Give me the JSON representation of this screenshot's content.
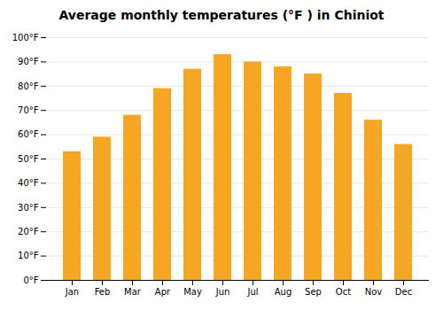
{
  "chart_data": {
    "type": "bar",
    "title": "Average monthly temperatures (°F ) in Chiniot",
    "categories": [
      "Jan",
      "Feb",
      "Mar",
      "Apr",
      "May",
      "Jun",
      "Jul",
      "Aug",
      "Sep",
      "Oct",
      "Nov",
      "Dec"
    ],
    "values": [
      53,
      59,
      68,
      79,
      87,
      93,
      90,
      88,
      85,
      77,
      66,
      56
    ],
    "color": "#F5A623",
    "ylim": [
      0,
      100
    ],
    "yticks": [
      {
        "value": 0,
        "label": "0°F"
      },
      {
        "value": 10,
        "label": "10°F"
      },
      {
        "value": 20,
        "label": "20°F"
      },
      {
        "value": 30,
        "label": "30°F"
      },
      {
        "value": 40,
        "label": "40°F"
      },
      {
        "value": 50,
        "label": "50°F"
      },
      {
        "value": 60,
        "label": "60°F"
      },
      {
        "value": 70,
        "label": "70°F"
      },
      {
        "value": 80,
        "label": "80°F"
      },
      {
        "value": 90,
        "label": "90°F"
      },
      {
        "value": 100,
        "label": "100°F"
      }
    ],
    "grid": true
  }
}
